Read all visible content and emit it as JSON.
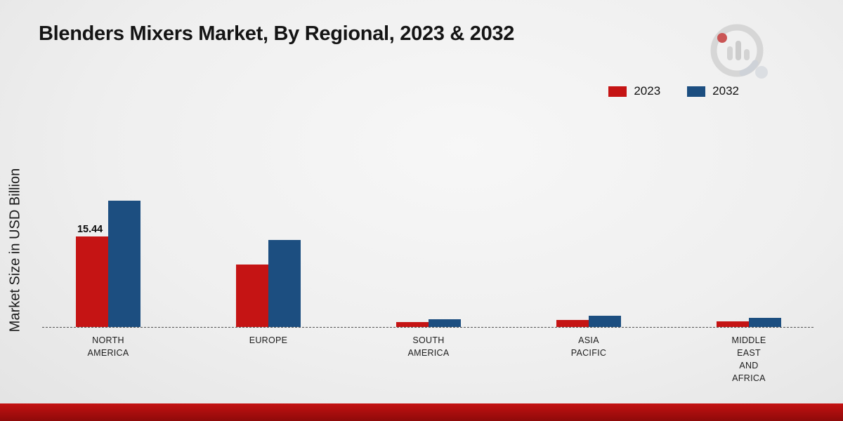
{
  "page": {
    "title": "Blenders Mixers Market, By Regional, 2023 & 2032"
  },
  "ylabel": "Market Size in USD Billion",
  "legend": {
    "items": [
      {
        "label": "2023",
        "color": "#c51414"
      },
      {
        "label": "2032",
        "color": "#1c4e80"
      }
    ]
  },
  "chart_data": {
    "type": "bar",
    "title": "Blenders Mixers Market, By Regional, 2023 & 2032",
    "xlabel": "",
    "ylabel": "Market Size in USD Billion",
    "categories": [
      "NORTH AMERICA",
      "EUROPE",
      "SOUTH AMERICA",
      "ASIA PACIFIC",
      "MIDDLE EAST AND AFRICA"
    ],
    "series": [
      {
        "name": "2023",
        "color": "#c51414",
        "values": [
          15.44,
          10.7,
          0.8,
          1.2,
          0.9
        ]
      },
      {
        "name": "2032",
        "color": "#1c4e80",
        "values": [
          21.6,
          14.9,
          1.3,
          1.9,
          1.5
        ]
      }
    ],
    "value_labels": [
      {
        "series": "2023",
        "category_index": 0,
        "text": "15.44"
      }
    ],
    "ylim": [
      0,
      24
    ],
    "grid": false,
    "legend_position": "top-right",
    "baseline_style": "dashed"
  },
  "colors": {
    "accent_red": "#c51414",
    "accent_blue": "#1c4e80",
    "footer_bar": "#a30d0d",
    "background": "#efefef"
  }
}
